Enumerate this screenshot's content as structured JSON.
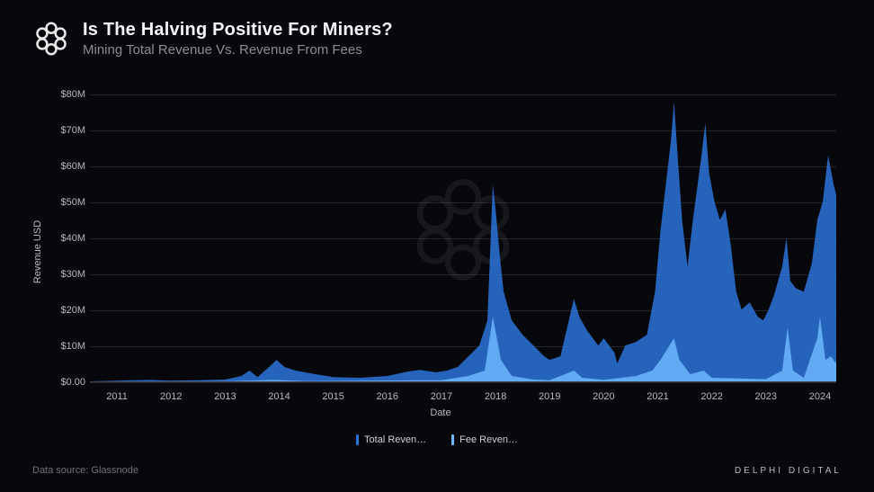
{
  "header": {
    "title": "Is The Halving Positive For Miners?",
    "subtitle": "Mining Total Revenue Vs. Revenue From Fees"
  },
  "chart": {
    "type": "area",
    "background_color": "#07080c",
    "grid_color": "#23252c",
    "axis_color": "#3a3d44",
    "tick_color": "#b8bac0",
    "title_fontsize": 20,
    "subtitle_fontsize": 15,
    "tick_fontsize": 11,
    "ylabel": "Revenue USD",
    "xlabel": "Date",
    "ylim": [
      0,
      80
    ],
    "yticks": [
      "$0.00",
      "$10M",
      "$20M",
      "$30M",
      "$40M",
      "$50M",
      "$60M",
      "$70M",
      "$80M"
    ],
    "xlim": [
      2010.5,
      2024.3
    ],
    "xticks": [
      2011,
      2012,
      2013,
      2014,
      2015,
      2016,
      2017,
      2018,
      2019,
      2020,
      2021,
      2022,
      2023,
      2024
    ],
    "series": {
      "total_revenue": {
        "label": "Total Reven…",
        "color": "#2b73d9",
        "fill_opacity": 0.85,
        "stroke_width": 0,
        "data": [
          [
            2010.5,
            0
          ],
          [
            2011.0,
            0.2
          ],
          [
            2011.3,
            0.3
          ],
          [
            2011.6,
            0.4
          ],
          [
            2012.0,
            0.2
          ],
          [
            2012.5,
            0.3
          ],
          [
            2013.0,
            0.5
          ],
          [
            2013.3,
            1.5
          ],
          [
            2013.45,
            3.0
          ],
          [
            2013.6,
            1.2
          ],
          [
            2013.85,
            4.5
          ],
          [
            2013.95,
            6.0
          ],
          [
            2014.1,
            4.0
          ],
          [
            2014.3,
            3.0
          ],
          [
            2014.6,
            2.2
          ],
          [
            2015.0,
            1.2
          ],
          [
            2015.5,
            1.0
          ],
          [
            2016.0,
            1.5
          ],
          [
            2016.4,
            2.8
          ],
          [
            2016.6,
            3.2
          ],
          [
            2016.9,
            2.5
          ],
          [
            2017.1,
            3.0
          ],
          [
            2017.3,
            4.0
          ],
          [
            2017.5,
            7.0
          ],
          [
            2017.7,
            10.0
          ],
          [
            2017.85,
            17.0
          ],
          [
            2017.95,
            55.0
          ],
          [
            2018.0,
            48.0
          ],
          [
            2018.08,
            35.0
          ],
          [
            2018.15,
            25.0
          ],
          [
            2018.3,
            17.0
          ],
          [
            2018.5,
            13.0
          ],
          [
            2018.7,
            10.0
          ],
          [
            2018.9,
            7.0
          ],
          [
            2019.0,
            6.0
          ],
          [
            2019.2,
            7.0
          ],
          [
            2019.45,
            23.0
          ],
          [
            2019.55,
            18.0
          ],
          [
            2019.7,
            14.0
          ],
          [
            2019.9,
            10.0
          ],
          [
            2020.0,
            12.0
          ],
          [
            2020.2,
            8.0
          ],
          [
            2020.25,
            5.0
          ],
          [
            2020.4,
            10.0
          ],
          [
            2020.6,
            11.0
          ],
          [
            2020.8,
            13.0
          ],
          [
            2020.95,
            25.0
          ],
          [
            2021.05,
            42.0
          ],
          [
            2021.15,
            55.0
          ],
          [
            2021.25,
            68.0
          ],
          [
            2021.3,
            78.0
          ],
          [
            2021.38,
            60.0
          ],
          [
            2021.45,
            45.0
          ],
          [
            2021.55,
            32.0
          ],
          [
            2021.65,
            45.0
          ],
          [
            2021.8,
            62.0
          ],
          [
            2021.88,
            72.0
          ],
          [
            2021.95,
            58.0
          ],
          [
            2022.05,
            50.0
          ],
          [
            2022.15,
            45.0
          ],
          [
            2022.25,
            48.0
          ],
          [
            2022.35,
            38.0
          ],
          [
            2022.45,
            25.0
          ],
          [
            2022.55,
            20.0
          ],
          [
            2022.7,
            22.0
          ],
          [
            2022.85,
            18.0
          ],
          [
            2022.95,
            17.0
          ],
          [
            2023.05,
            20.0
          ],
          [
            2023.15,
            24.0
          ],
          [
            2023.3,
            32.0
          ],
          [
            2023.38,
            40.0
          ],
          [
            2023.45,
            28.0
          ],
          [
            2023.55,
            26.0
          ],
          [
            2023.7,
            25.0
          ],
          [
            2023.85,
            33.0
          ],
          [
            2023.95,
            45.0
          ],
          [
            2024.05,
            50.0
          ],
          [
            2024.15,
            63.0
          ],
          [
            2024.25,
            55.0
          ],
          [
            2024.3,
            52.0
          ]
        ]
      },
      "fee_revenue": {
        "label": "Fee Reven…",
        "color": "#6fb6ff",
        "fill_opacity": 0.85,
        "stroke_width": 0,
        "data": [
          [
            2010.5,
            0
          ],
          [
            2013.0,
            0.05
          ],
          [
            2013.9,
            0.4
          ],
          [
            2014.5,
            0.1
          ],
          [
            2016.5,
            0.3
          ],
          [
            2017.0,
            0.3
          ],
          [
            2017.5,
            1.5
          ],
          [
            2017.8,
            3.0
          ],
          [
            2017.95,
            18.0
          ],
          [
            2018.0,
            14.0
          ],
          [
            2018.1,
            6.0
          ],
          [
            2018.3,
            1.5
          ],
          [
            2018.7,
            0.5
          ],
          [
            2019.0,
            0.3
          ],
          [
            2019.45,
            3.0
          ],
          [
            2019.6,
            1.0
          ],
          [
            2020.0,
            0.4
          ],
          [
            2020.6,
            1.5
          ],
          [
            2020.9,
            3.0
          ],
          [
            2021.05,
            6.0
          ],
          [
            2021.3,
            12.0
          ],
          [
            2021.4,
            6.0
          ],
          [
            2021.6,
            2.0
          ],
          [
            2021.85,
            3.0
          ],
          [
            2022.0,
            1.0
          ],
          [
            2022.5,
            0.8
          ],
          [
            2023.0,
            0.6
          ],
          [
            2023.3,
            3.0
          ],
          [
            2023.4,
            15.0
          ],
          [
            2023.5,
            3.0
          ],
          [
            2023.7,
            1.0
          ],
          [
            2023.95,
            12.0
          ],
          [
            2024.0,
            18.0
          ],
          [
            2024.1,
            6.0
          ],
          [
            2024.2,
            7.0
          ],
          [
            2024.3,
            5.0
          ]
        ]
      }
    },
    "legend_position": "bottom-center",
    "watermark_color": "#2a2d34"
  },
  "footer": {
    "source_label": "Data source: Glassnode",
    "brand": "DELPHI DIGITAL"
  }
}
